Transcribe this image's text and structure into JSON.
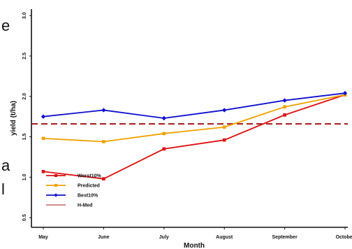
{
  "side_text": [
    "e",
    "a",
    "l"
  ],
  "chart_data": {
    "type": "line",
    "xlabel": "Month",
    "ylabel": "yield (t/ha)",
    "categories": [
      "May",
      "June",
      "July",
      "August",
      "September",
      "October"
    ],
    "ylim": [
      0.5,
      3.0
    ],
    "yticks": [
      0.5,
      1.0,
      1.5,
      2.0,
      2.5,
      3.0
    ],
    "ytick_labels": [
      "0.5",
      "1.0",
      "1.5",
      "2.0",
      "2.5",
      "3.0"
    ],
    "grid": false,
    "legend_position": "bottom-left",
    "series": [
      {
        "name": "Worst10%",
        "color": "#dd1111",
        "marker": "square",
        "values": [
          1.07,
          0.98,
          1.35,
          1.46,
          1.77,
          2.02
        ]
      },
      {
        "name": "Predicted",
        "color": "#f0a000",
        "marker": "square",
        "values": [
          1.48,
          1.44,
          1.54,
          1.62,
          1.87,
          2.02
        ]
      },
      {
        "name": "Best10%",
        "color": "#1010cc",
        "marker": "diamond",
        "values": [
          1.75,
          1.83,
          1.73,
          1.83,
          1.95,
          2.04
        ]
      }
    ],
    "reference_line": {
      "name": "H-Med",
      "value": 1.66,
      "color": "#a01818",
      "style": "dashed"
    }
  }
}
